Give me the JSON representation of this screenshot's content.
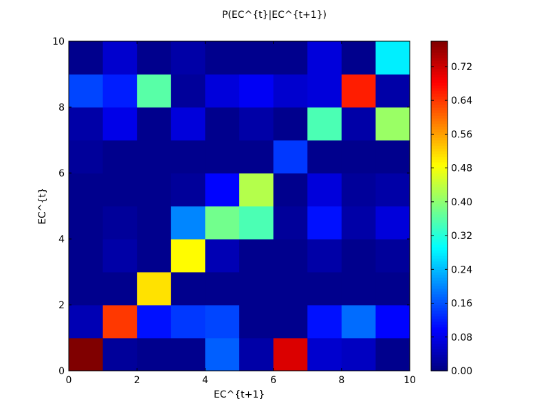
{
  "chart_data": {
    "type": "heatmap",
    "title": "P(EC^{t}|EC^{t+1})",
    "xlabel": "EC^{t+1}",
    "ylabel": "EC^{t}",
    "xlim": [
      0,
      10
    ],
    "ylim": [
      0,
      10
    ],
    "x_ticks": [
      "0",
      "2",
      "4",
      "6",
      "8",
      "10"
    ],
    "y_ticks": [
      "0",
      "2",
      "4",
      "6",
      "8",
      "10"
    ],
    "colormap": "jet",
    "colorbar": {
      "min": 0.0,
      "max": 0.78,
      "ticks": [
        "0.00",
        "0.08",
        "0.16",
        "0.24",
        "0.32",
        "0.40",
        "0.48",
        "0.56",
        "0.64",
        "0.72"
      ]
    },
    "grid": false,
    "row_order": "y from 0 (bottom) to 9 (top); columns x from 0 to 9",
    "values": [
      [
        0.78,
        0.02,
        0.01,
        0.01,
        0.17,
        0.03,
        0.71,
        0.06,
        0.05,
        0.01
      ],
      [
        0.04,
        0.64,
        0.11,
        0.14,
        0.15,
        0.01,
        0.01,
        0.11,
        0.18,
        0.1
      ],
      [
        0.01,
        0.01,
        0.51,
        0.01,
        0.01,
        0.01,
        0.01,
        0.01,
        0.01,
        0.01
      ],
      [
        0.01,
        0.03,
        0.01,
        0.49,
        0.04,
        0.01,
        0.01,
        0.03,
        0.01,
        0.02
      ],
      [
        0.01,
        0.02,
        0.01,
        0.2,
        0.38,
        0.35,
        0.02,
        0.11,
        0.03,
        0.07
      ],
      [
        0.01,
        0.01,
        0.01,
        0.02,
        0.1,
        0.43,
        0.01,
        0.07,
        0.02,
        0.03
      ],
      [
        0.02,
        0.01,
        0.01,
        0.01,
        0.01,
        0.01,
        0.14,
        0.01,
        0.01,
        0.01
      ],
      [
        0.03,
        0.08,
        0.01,
        0.07,
        0.01,
        0.03,
        0.01,
        0.35,
        0.03,
        0.41
      ],
      [
        0.15,
        0.12,
        0.36,
        0.02,
        0.07,
        0.09,
        0.06,
        0.07,
        0.66,
        0.03
      ],
      [
        0.01,
        0.06,
        0.01,
        0.03,
        0.01,
        0.01,
        0.01,
        0.07,
        0.01,
        0.28
      ]
    ]
  }
}
